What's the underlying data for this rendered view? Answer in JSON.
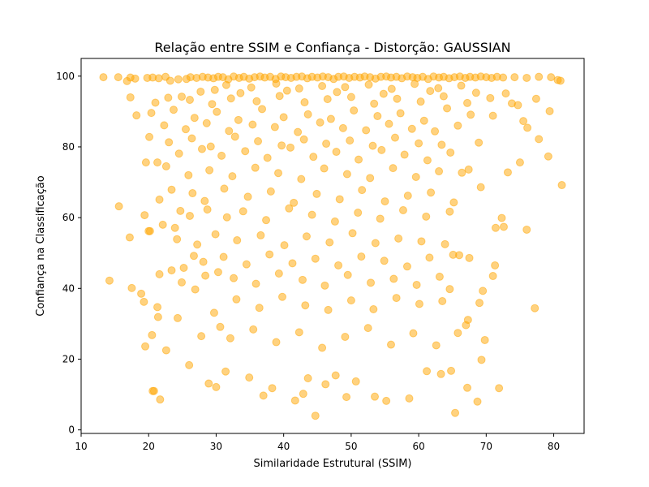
{
  "chart_data": {
    "type": "scatter",
    "title": "Relação entre SSIM e Confiança - Distorção: GAUSSIAN",
    "xlabel": "Similaridade Estrutural (SSIM)",
    "ylabel": "Confiança na Classificação",
    "xlim": [
      10,
      84.5
    ],
    "ylim": [
      -1,
      105
    ],
    "xticks": [
      10,
      20,
      30,
      40,
      50,
      60,
      70,
      80
    ],
    "yticks": [
      0,
      20,
      40,
      60,
      80,
      100
    ],
    "grid": false,
    "legend": "none",
    "marker_color": "#FFA500",
    "marker_alpha": 0.5,
    "points": [
      [
        13.3,
        99.7
      ],
      [
        15.5,
        99.7
      ],
      [
        16.8,
        98.6
      ],
      [
        17.3,
        99.6
      ],
      [
        18.0,
        99.3
      ],
      [
        19.8,
        99.5
      ],
      [
        20.6,
        99.6
      ],
      [
        21.5,
        99.4
      ],
      [
        22.5,
        99.8
      ],
      [
        23.2,
        98.7
      ],
      [
        24.4,
        99.1
      ],
      [
        25.6,
        99.2
      ],
      [
        26.2,
        99.7
      ],
      [
        27.1,
        99.5
      ],
      [
        28.0,
        99.8
      ],
      [
        28.8,
        99.6
      ],
      [
        29.6,
        99.4
      ],
      [
        30.3,
        99.8
      ],
      [
        31.0,
        99.7
      ],
      [
        31.8,
        99.1
      ],
      [
        32.6,
        99.9
      ],
      [
        33.4,
        99.5
      ],
      [
        34.1,
        99.8
      ],
      [
        34.9,
        99.3
      ],
      [
        35.7,
        99.7
      ],
      [
        36.5,
        99.9
      ],
      [
        37.2,
        99.6
      ],
      [
        38.0,
        99.8
      ],
      [
        38.8,
        99.2
      ],
      [
        39.6,
        99.9
      ],
      [
        40.3,
        99.7
      ],
      [
        41.1,
        99.5
      ],
      [
        41.9,
        99.8
      ],
      [
        42.7,
        99.9
      ],
      [
        43.5,
        99.4
      ],
      [
        44.2,
        99.8
      ],
      [
        45.0,
        99.6
      ],
      [
        45.8,
        99.9
      ],
      [
        46.6,
        99.7
      ],
      [
        47.4,
        99.2
      ],
      [
        48.1,
        99.8
      ],
      [
        48.9,
        99.9
      ],
      [
        49.7,
        99.5
      ],
      [
        50.5,
        99.8
      ],
      [
        51.3,
        99.6
      ],
      [
        52.0,
        99.9
      ],
      [
        52.8,
        99.7
      ],
      [
        53.6,
        99.3
      ],
      [
        54.4,
        99.8
      ],
      [
        55.2,
        99.9
      ],
      [
        55.9,
        99.6
      ],
      [
        56.7,
        99.8
      ],
      [
        57.5,
        99.4
      ],
      [
        58.3,
        99.9
      ],
      [
        59.1,
        99.7
      ],
      [
        59.8,
        99.5
      ],
      [
        60.6,
        99.8
      ],
      [
        61.4,
        99.2
      ],
      [
        62.2,
        99.9
      ],
      [
        63.0,
        99.6
      ],
      [
        63.7,
        99.8
      ],
      [
        64.5,
        99.4
      ],
      [
        65.3,
        99.7
      ],
      [
        66.1,
        99.9
      ],
      [
        66.9,
        99.5
      ],
      [
        67.6,
        99.8
      ],
      [
        68.4,
        99.6
      ],
      [
        69.2,
        99.9
      ],
      [
        70.0,
        99.7
      ],
      [
        70.8,
        99.5
      ],
      [
        71.6,
        99.8
      ],
      [
        72.5,
        99.6
      ],
      [
        74.2,
        99.7
      ],
      [
        76.0,
        99.5
      ],
      [
        77.8,
        99.8
      ],
      [
        79.6,
        99.7
      ],
      [
        80.6,
        98.9
      ],
      [
        81.0,
        98.7
      ],
      [
        31.5,
        97.5
      ],
      [
        35.2,
        96.8
      ],
      [
        38.9,
        97.9
      ],
      [
        42.3,
        96.5
      ],
      [
        45.7,
        97.2
      ],
      [
        49.1,
        96.9
      ],
      [
        52.6,
        97.6
      ],
      [
        56.0,
        96.4
      ],
      [
        59.4,
        97.8
      ],
      [
        62.9,
        96.6
      ],
      [
        66.3,
        97.3
      ],
      [
        29.8,
        96.1
      ],
      [
        33.6,
        95.2
      ],
      [
        40.5,
        95.9
      ],
      [
        47.9,
        95.5
      ],
      [
        54.8,
        95.0
      ],
      [
        61.7,
        95.8
      ],
      [
        68.5,
        95.3
      ],
      [
        24.9,
        94.2
      ],
      [
        27.7,
        95.6
      ],
      [
        17.3,
        94.0
      ],
      [
        21.0,
        92.5
      ],
      [
        22.9,
        93.9
      ],
      [
        26.1,
        93.3
      ],
      [
        29.4,
        92.1
      ],
      [
        32.2,
        93.7
      ],
      [
        36.0,
        92.9
      ],
      [
        39.4,
        94.4
      ],
      [
        43.1,
        92.6
      ],
      [
        46.5,
        93.5
      ],
      [
        50.0,
        94.1
      ],
      [
        53.4,
        92.2
      ],
      [
        56.8,
        93.6
      ],
      [
        60.3,
        92.8
      ],
      [
        63.7,
        94.3
      ],
      [
        67.2,
        92.4
      ],
      [
        70.6,
        93.8
      ],
      [
        72.9,
        95.1
      ],
      [
        73.8,
        92.3
      ],
      [
        74.7,
        91.8
      ],
      [
        75.5,
        87.3
      ],
      [
        76.1,
        85.4
      ],
      [
        77.4,
        93.6
      ],
      [
        79.4,
        90.1
      ],
      [
        18.2,
        88.9
      ],
      [
        20.4,
        89.6
      ],
      [
        23.7,
        90.5
      ],
      [
        26.8,
        88.2
      ],
      [
        30.1,
        89.9
      ],
      [
        33.3,
        87.6
      ],
      [
        36.8,
        90.7
      ],
      [
        40.0,
        88.4
      ],
      [
        43.6,
        89.2
      ],
      [
        47.0,
        87.9
      ],
      [
        50.4,
        90.3
      ],
      [
        53.9,
        88.7
      ],
      [
        57.3,
        89.5
      ],
      [
        60.8,
        87.4
      ],
      [
        64.2,
        90.9
      ],
      [
        67.7,
        89.1
      ],
      [
        71.0,
        88.8
      ],
      [
        22.3,
        86.1
      ],
      [
        25.5,
        85.0
      ],
      [
        28.6,
        86.7
      ],
      [
        31.9,
        84.5
      ],
      [
        35.4,
        86.3
      ],
      [
        38.7,
        85.6
      ],
      [
        42.1,
        84.2
      ],
      [
        45.4,
        86.9
      ],
      [
        48.8,
        85.3
      ],
      [
        52.2,
        84.7
      ],
      [
        55.6,
        86.5
      ],
      [
        59.0,
        85.1
      ],
      [
        62.4,
        84.4
      ],
      [
        65.8,
        86.0
      ],
      [
        20.1,
        82.8
      ],
      [
        23.0,
        81.3
      ],
      [
        26.4,
        82.4
      ],
      [
        29.2,
        80.1
      ],
      [
        32.8,
        82.9
      ],
      [
        36.2,
        81.6
      ],
      [
        39.7,
        80.4
      ],
      [
        43.0,
        82.1
      ],
      [
        46.3,
        80.9
      ],
      [
        49.8,
        81.8
      ],
      [
        53.2,
        80.3
      ],
      [
        56.5,
        82.6
      ],
      [
        60.0,
        81.0
      ],
      [
        63.4,
        80.6
      ],
      [
        68.9,
        81.2
      ],
      [
        77.8,
        82.2
      ],
      [
        19.6,
        75.6
      ],
      [
        21.3,
        75.6
      ],
      [
        24.5,
        78.1
      ],
      [
        27.9,
        79.4
      ],
      [
        30.8,
        77.5
      ],
      [
        34.3,
        78.8
      ],
      [
        37.6,
        76.9
      ],
      [
        41.0,
        79.8
      ],
      [
        44.4,
        77.2
      ],
      [
        47.8,
        78.6
      ],
      [
        51.1,
        76.4
      ],
      [
        54.5,
        79.1
      ],
      [
        57.9,
        77.8
      ],
      [
        61.3,
        76.2
      ],
      [
        64.7,
        78.4
      ],
      [
        73.2,
        72.8
      ],
      [
        75.0,
        75.6
      ],
      [
        79.2,
        77.3
      ],
      [
        81.2,
        69.2
      ],
      [
        22.6,
        74.5
      ],
      [
        25.9,
        72.0
      ],
      [
        29.0,
        73.4
      ],
      [
        32.4,
        71.7
      ],
      [
        35.8,
        74.1
      ],
      [
        39.2,
        72.6
      ],
      [
        42.6,
        70.9
      ],
      [
        46.0,
        73.9
      ],
      [
        49.4,
        72.3
      ],
      [
        52.8,
        71.2
      ],
      [
        56.2,
        74.0
      ],
      [
        59.6,
        71.5
      ],
      [
        63.0,
        73.1
      ],
      [
        66.4,
        72.7
      ],
      [
        67.4,
        73.6
      ],
      [
        69.2,
        68.6
      ],
      [
        21.6,
        65.1
      ],
      [
        23.4,
        67.9
      ],
      [
        24.7,
        61.9
      ],
      [
        26.5,
        66.9
      ],
      [
        28.3,
        64.7
      ],
      [
        31.2,
        68.2
      ],
      [
        34.7,
        65.9
      ],
      [
        38.1,
        67.4
      ],
      [
        41.5,
        64.2
      ],
      [
        44.9,
        66.7
      ],
      [
        48.3,
        65.2
      ],
      [
        51.6,
        67.8
      ],
      [
        55.0,
        64.6
      ],
      [
        58.4,
        66.2
      ],
      [
        61.8,
        67.1
      ],
      [
        65.2,
        64.3
      ],
      [
        15.6,
        63.2
      ],
      [
        19.4,
        60.7
      ],
      [
        20.0,
        56.2
      ],
      [
        20.2,
        56.2
      ],
      [
        22.1,
        58.0
      ],
      [
        23.9,
        57.1
      ],
      [
        26.1,
        60.5
      ],
      [
        28.7,
        62.3
      ],
      [
        31.6,
        60.1
      ],
      [
        34.0,
        61.8
      ],
      [
        37.4,
        59.3
      ],
      [
        40.8,
        62.6
      ],
      [
        44.2,
        60.8
      ],
      [
        47.6,
        58.9
      ],
      [
        51.0,
        61.4
      ],
      [
        54.3,
        59.7
      ],
      [
        57.7,
        62.1
      ],
      [
        61.1,
        60.3
      ],
      [
        64.6,
        61.7
      ],
      [
        71.4,
        57.1
      ],
      [
        72.3,
        59.9
      ],
      [
        72.6,
        57.4
      ],
      [
        76.0,
        56.6
      ],
      [
        17.2,
        54.4
      ],
      [
        24.2,
        53.9
      ],
      [
        27.2,
        52.4
      ],
      [
        29.9,
        55.3
      ],
      [
        33.1,
        53.6
      ],
      [
        36.6,
        55.0
      ],
      [
        40.1,
        52.2
      ],
      [
        43.4,
        54.7
      ],
      [
        46.8,
        53.0
      ],
      [
        50.2,
        55.6
      ],
      [
        53.6,
        52.8
      ],
      [
        57.0,
        54.1
      ],
      [
        60.4,
        53.3
      ],
      [
        63.9,
        52.5
      ],
      [
        25.2,
        45.8
      ],
      [
        26.7,
        49.2
      ],
      [
        28.1,
        47.5
      ],
      [
        31.1,
        48.9
      ],
      [
        34.5,
        46.8
      ],
      [
        37.9,
        49.6
      ],
      [
        41.3,
        47.1
      ],
      [
        44.7,
        48.4
      ],
      [
        48.1,
        46.5
      ],
      [
        51.5,
        49.0
      ],
      [
        54.9,
        47.8
      ],
      [
        58.3,
        46.2
      ],
      [
        61.6,
        48.7
      ],
      [
        65.1,
        49.5
      ],
      [
        66.0,
        49.4
      ],
      [
        67.5,
        48.6
      ],
      [
        71.3,
        46.5
      ],
      [
        21.6,
        44.0
      ],
      [
        23.4,
        45.1
      ],
      [
        24.9,
        41.7
      ],
      [
        28.4,
        43.6
      ],
      [
        30.3,
        44.6
      ],
      [
        32.6,
        42.9
      ],
      [
        35.9,
        41.3
      ],
      [
        39.3,
        44.2
      ],
      [
        42.8,
        42.4
      ],
      [
        46.1,
        40.8
      ],
      [
        49.5,
        43.8
      ],
      [
        52.9,
        41.6
      ],
      [
        56.3,
        42.7
      ],
      [
        59.7,
        41.0
      ],
      [
        63.1,
        43.3
      ],
      [
        64.6,
        39.8
      ],
      [
        69.5,
        39.3
      ],
      [
        71.0,
        43.5
      ],
      [
        14.2,
        42.2
      ],
      [
        17.5,
        40.1
      ],
      [
        18.9,
        38.5
      ],
      [
        19.3,
        36.2
      ],
      [
        21.3,
        34.7
      ],
      [
        21.4,
        31.9
      ],
      [
        24.3,
        31.6
      ],
      [
        26.9,
        39.7
      ],
      [
        29.7,
        33.1
      ],
      [
        33.0,
        36.9
      ],
      [
        36.4,
        34.5
      ],
      [
        39.8,
        37.6
      ],
      [
        43.2,
        35.2
      ],
      [
        46.6,
        33.9
      ],
      [
        50.0,
        36.6
      ],
      [
        53.3,
        34.1
      ],
      [
        56.7,
        37.3
      ],
      [
        60.1,
        35.6
      ],
      [
        63.5,
        36.4
      ],
      [
        67.3,
        31.1
      ],
      [
        69.0,
        35.9
      ],
      [
        77.2,
        34.4
      ],
      [
        19.5,
        23.6
      ],
      [
        20.5,
        26.8
      ],
      [
        22.6,
        22.5
      ],
      [
        26.0,
        18.3
      ],
      [
        27.8,
        26.5
      ],
      [
        30.6,
        29.1
      ],
      [
        32.1,
        25.9
      ],
      [
        35.5,
        28.4
      ],
      [
        38.9,
        24.8
      ],
      [
        42.3,
        27.6
      ],
      [
        45.7,
        23.2
      ],
      [
        49.1,
        26.3
      ],
      [
        52.5,
        28.8
      ],
      [
        55.9,
        24.1
      ],
      [
        59.2,
        27.3
      ],
      [
        62.6,
        23.9
      ],
      [
        65.8,
        27.4
      ],
      [
        67.0,
        29.6
      ],
      [
        69.3,
        19.8
      ],
      [
        69.8,
        25.4
      ],
      [
        20.6,
        11.0
      ],
      [
        20.8,
        11.0
      ],
      [
        21.7,
        8.6
      ],
      [
        28.9,
        13.1
      ],
      [
        30.0,
        12.1
      ],
      [
        31.4,
        16.5
      ],
      [
        34.9,
        14.8
      ],
      [
        37.0,
        9.7
      ],
      [
        38.3,
        11.8
      ],
      [
        41.7,
        8.3
      ],
      [
        42.9,
        10.2
      ],
      [
        43.6,
        14.6
      ],
      [
        44.7,
        4.0
      ],
      [
        46.2,
        12.9
      ],
      [
        47.7,
        15.4
      ],
      [
        49.3,
        9.3
      ],
      [
        50.7,
        13.7
      ],
      [
        53.5,
        9.4
      ],
      [
        55.2,
        8.2
      ],
      [
        58.6,
        8.9
      ],
      [
        61.2,
        16.6
      ],
      [
        63.3,
        15.8
      ],
      [
        64.8,
        16.7
      ],
      [
        65.4,
        4.8
      ],
      [
        67.2,
        11.9
      ],
      [
        68.7,
        8.0
      ],
      [
        71.9,
        11.8
      ]
    ]
  }
}
